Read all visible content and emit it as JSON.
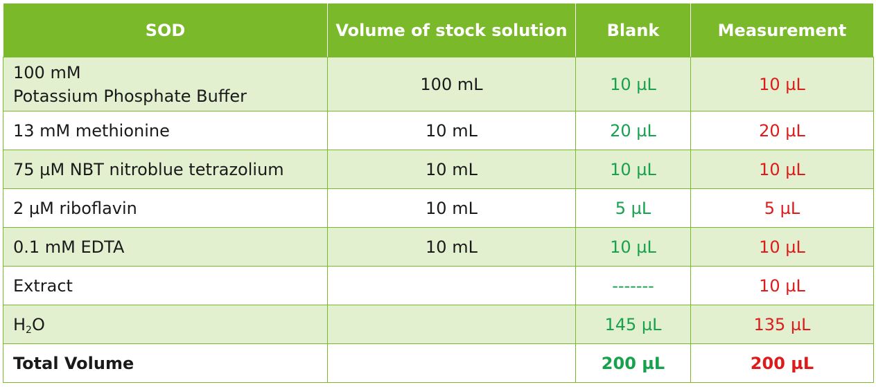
{
  "header": {
    "col1": "SOD",
    "col2": "Volume of stock solution",
    "col3": "Blank",
    "col4": "Measurement"
  },
  "rows": [
    {
      "reagent_line1": "100 mM",
      "reagent_line2": "Potassium Phosphate Buffer",
      "stock": "100 mL",
      "blank": "10 µL",
      "measurement": "10 µL"
    },
    {
      "reagent": "13 mM methionine",
      "stock": "10 mL",
      "blank": "20 µL",
      "measurement": "20 µL"
    },
    {
      "reagent": "75 µM NBT nitroblue tetrazolium",
      "stock": "10 mL",
      "blank": "10 µL",
      "measurement": "10 µL"
    },
    {
      "reagent": "2 µM riboflavin",
      "stock": "10 mL",
      "blank": "5 µL",
      "measurement": "5 µL"
    },
    {
      "reagent": "0.1 mM EDTA",
      "stock": "10 mL",
      "blank": "10 µL",
      "measurement": "10 µL"
    },
    {
      "reagent": "Extract",
      "stock": "",
      "blank": "-------",
      "measurement": "10 µL"
    },
    {
      "reagent_base": "H",
      "reagent_sub": "2",
      "reagent_tail": "O",
      "stock": "",
      "blank": "145 µL",
      "measurement": "135 µL"
    }
  ],
  "total": {
    "label": "Total Volume",
    "stock": "",
    "blank": "200 µL",
    "measurement": "200 µL"
  },
  "colors": {
    "header_bg": "#7ab929",
    "alt_row_bg": "#e2f0d0",
    "blank_text": "#16a14d",
    "measurement_text": "#dd1b1b"
  }
}
